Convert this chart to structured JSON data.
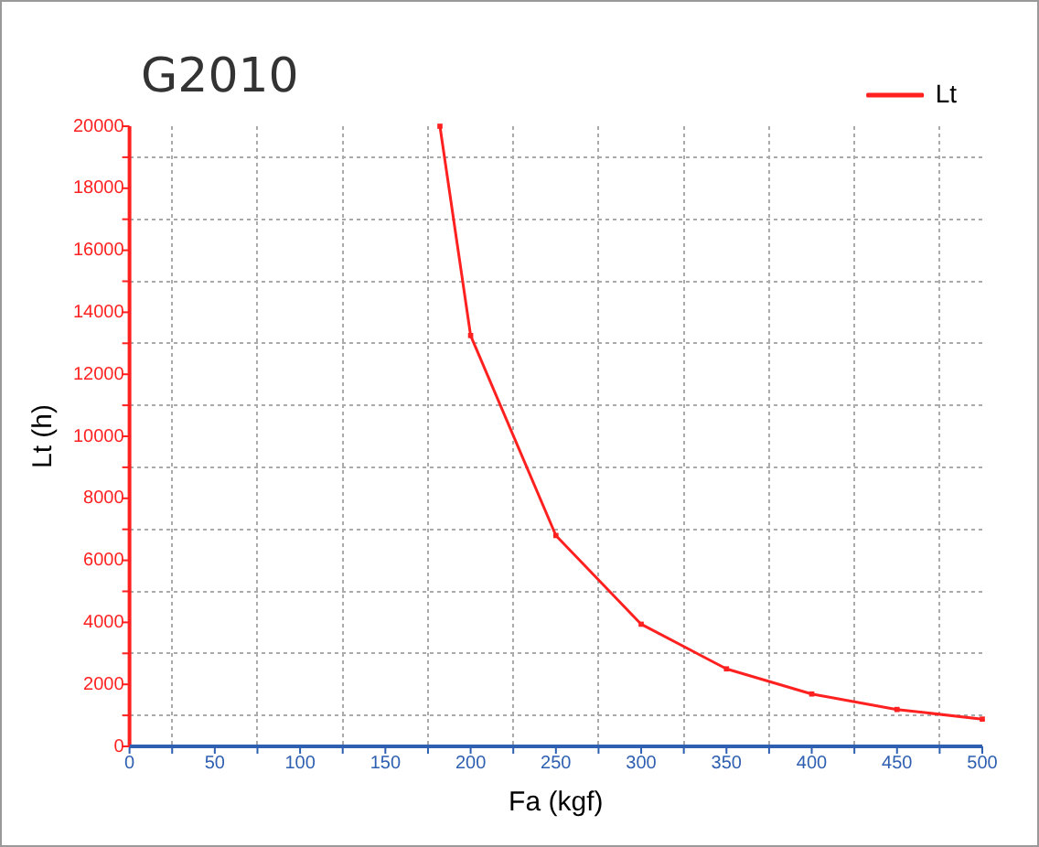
{
  "chart_data": {
    "type": "line",
    "title": "G2010",
    "xlabel": "Fa (kgf)",
    "ylabel": "Lt (h)",
    "x": [
      182,
      200,
      250,
      300,
      350,
      400,
      450,
      500
    ],
    "series": [
      {
        "name": "Lt",
        "color": "#ff2020",
        "values": [
          20000,
          13250,
          6800,
          3940,
          2500,
          1690,
          1190,
          880
        ]
      }
    ],
    "xlim": [
      0,
      500
    ],
    "xticks": [
      0,
      {
        "value": 25,
        "label": null
      },
      50,
      {
        "value": 75,
        "label": null
      },
      100,
      {
        "value": 125,
        "label": null
      },
      150,
      {
        "value": 175,
        "label": null
      },
      200,
      {
        "value": 225,
        "label": null
      },
      250,
      {
        "value": 275,
        "label": null
      },
      300,
      {
        "value": 325,
        "label": null
      },
      350,
      {
        "value": 375,
        "label": null
      },
      400,
      {
        "value": 425,
        "label": null
      },
      450,
      {
        "value": 475,
        "label": null
      },
      500
    ],
    "ylim": [
      0,
      20000
    ],
    "yticks": [
      0,
      {
        "value": 1000,
        "label": null
      },
      2000,
      {
        "value": 3000,
        "label": null
      },
      4000,
      {
        "value": 5000,
        "label": null
      },
      6000,
      {
        "value": 7000,
        "label": null
      },
      8000,
      {
        "value": 9000,
        "label": null
      },
      10000,
      {
        "value": 11000,
        "label": null
      },
      12000,
      {
        "value": 13000,
        "label": null
      },
      14000,
      {
        "value": 15000,
        "label": null
      },
      16000,
      {
        "value": 17000,
        "label": null
      },
      18000,
      {
        "value": 19000,
        "label": null
      },
      20000
    ],
    "grid": true,
    "legend": "top right",
    "marker": "square",
    "line_style": "solid"
  }
}
